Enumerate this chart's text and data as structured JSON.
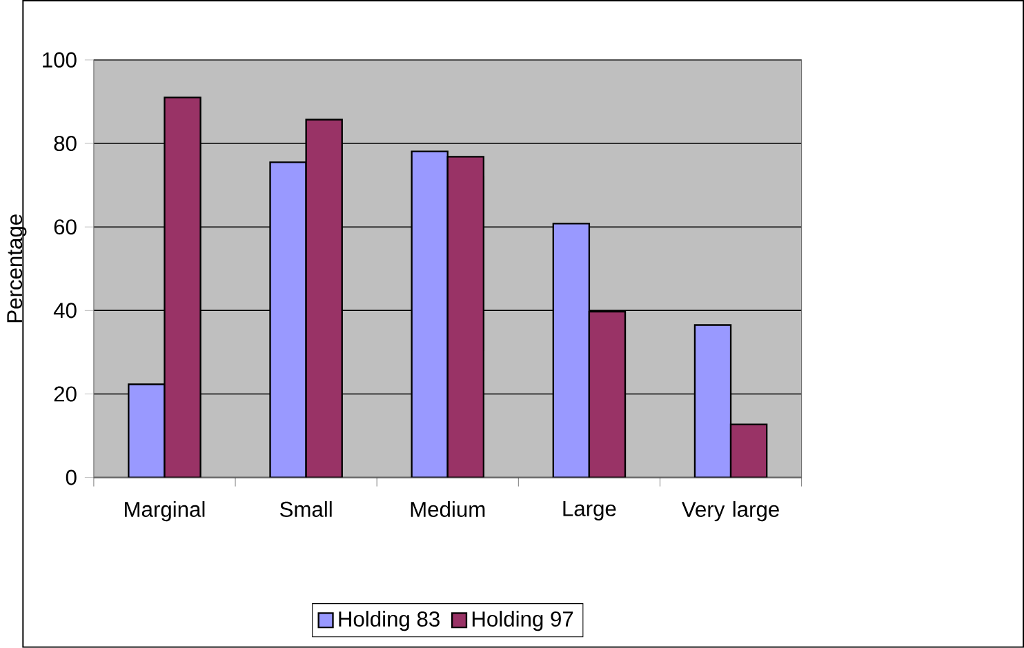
{
  "chart_data": {
    "type": "bar",
    "ylabel": "Percentage",
    "categories": [
      "Marginal",
      "Small",
      "Medium",
      "Large",
      "Very large"
    ],
    "series": [
      {
        "name": "Holding 83",
        "color": "#9999ff",
        "values": [
          22.3,
          75.5,
          78.1,
          60.8,
          36.5
        ]
      },
      {
        "name": "Holding 97",
        "color": "#993366",
        "values": [
          91.0,
          85.7,
          76.8,
          39.7,
          12.7
        ]
      }
    ],
    "ylim": [
      0,
      100
    ],
    "yticks": [
      0,
      20,
      40,
      60,
      80,
      100
    ],
    "grid": "y",
    "legend": "bottom"
  }
}
